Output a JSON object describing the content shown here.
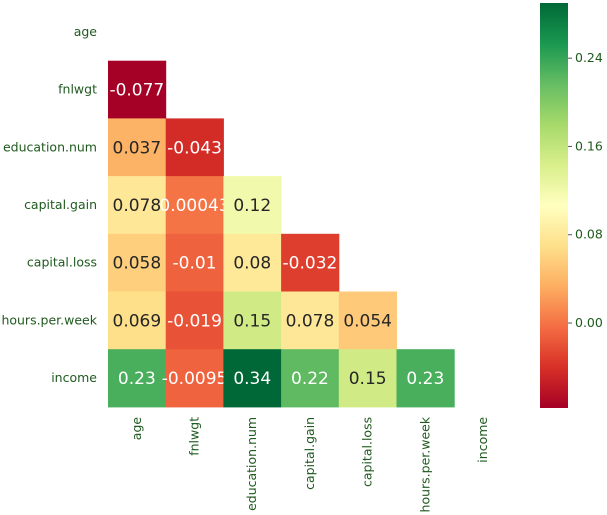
{
  "chart_data": {
    "type": "heatmap",
    "variables": [
      "age",
      "fnlwgt",
      "education.num",
      "capital.gain",
      "capital.loss",
      "hours.per.week",
      "income"
    ],
    "mask": "upper-triangle-including-diagonal",
    "cells": [
      {
        "row": "fnlwgt",
        "col": "age",
        "value": -0.077,
        "label": "-0.077"
      },
      {
        "row": "education.num",
        "col": "age",
        "value": 0.037,
        "label": "0.037"
      },
      {
        "row": "education.num",
        "col": "fnlwgt",
        "value": -0.043,
        "label": "-0.043"
      },
      {
        "row": "capital.gain",
        "col": "age",
        "value": 0.078,
        "label": "0.078"
      },
      {
        "row": "capital.gain",
        "col": "fnlwgt",
        "value": 0.00043,
        "label": "0.00043"
      },
      {
        "row": "capital.gain",
        "col": "education.num",
        "value": 0.12,
        "label": "0.12"
      },
      {
        "row": "capital.loss",
        "col": "age",
        "value": 0.058,
        "label": "0.058"
      },
      {
        "row": "capital.loss",
        "col": "fnlwgt",
        "value": -0.01,
        "label": "-0.01"
      },
      {
        "row": "capital.loss",
        "col": "education.num",
        "value": 0.08,
        "label": "0.08"
      },
      {
        "row": "capital.loss",
        "col": "capital.gain",
        "value": -0.032,
        "label": "-0.032"
      },
      {
        "row": "hours.per.week",
        "col": "age",
        "value": 0.069,
        "label": "0.069"
      },
      {
        "row": "hours.per.week",
        "col": "fnlwgt",
        "value": -0.019,
        "label": "-0.019"
      },
      {
        "row": "hours.per.week",
        "col": "education.num",
        "value": 0.15,
        "label": "0.15"
      },
      {
        "row": "hours.per.week",
        "col": "capital.gain",
        "value": 0.078,
        "label": "0.078"
      },
      {
        "row": "hours.per.week",
        "col": "capital.loss",
        "value": 0.054,
        "label": "0.054"
      },
      {
        "row": "income",
        "col": "age",
        "value": 0.23,
        "label": "0.23"
      },
      {
        "row": "income",
        "col": "fnlwgt",
        "value": -0.0095,
        "label": "-0.0095"
      },
      {
        "row": "income",
        "col": "education.num",
        "value": 0.34,
        "label": "0.34"
      },
      {
        "row": "income",
        "col": "capital.gain",
        "value": 0.22,
        "label": "0.22"
      },
      {
        "row": "income",
        "col": "capital.loss",
        "value": 0.15,
        "label": "0.15"
      },
      {
        "row": "income",
        "col": "hours.per.week",
        "value": 0.23,
        "label": "0.23"
      }
    ],
    "colormap": "RdYlGn",
    "colorbar": {
      "vmin": -0.077,
      "vmax": 0.29,
      "ticks": [
        0.0,
        0.08,
        0.16,
        0.24
      ],
      "tick_labels": [
        "0.00",
        "0.08",
        "0.16",
        "0.24"
      ]
    },
    "grid": false,
    "legend": "colorbar-right"
  }
}
